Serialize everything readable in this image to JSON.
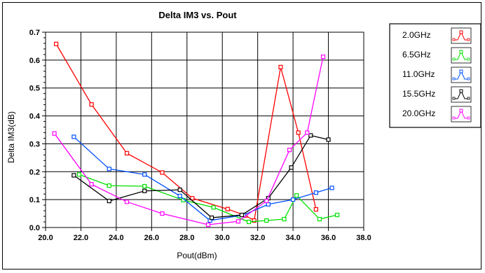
{
  "chart_data": {
    "type": "line",
    "title": "Delta IM3 vs. Pout",
    "xlabel": "Pout(dBm)",
    "ylabel": "Delta IM3(dB)",
    "xlim": [
      20.0,
      38.0
    ],
    "ylim": [
      0.0,
      0.7
    ],
    "x_ticks": [
      "20.0",
      "22.0",
      "24.0",
      "26.0",
      "28.0",
      "30.0",
      "32.0",
      "34.0",
      "36.0",
      "38.0"
    ],
    "y_ticks": [
      "0.0",
      "0.1",
      "0.2",
      "0.3",
      "0.4",
      "0.5",
      "0.6",
      "0.7"
    ],
    "grid": true,
    "legend_position": "right",
    "series": [
      {
        "name": "2.0GHz",
        "color": "#ff0000",
        "points": [
          [
            20.6,
            0.658
          ],
          [
            22.6,
            0.441
          ],
          [
            24.6,
            0.266
          ],
          [
            26.6,
            0.197
          ],
          [
            28.3,
            0.105
          ],
          [
            30.3,
            0.066
          ],
          [
            31.3,
            0.043
          ],
          [
            31.8,
            0.025
          ],
          [
            33.3,
            0.575
          ],
          [
            34.3,
            0.34
          ],
          [
            35.3,
            0.065
          ]
        ]
      },
      {
        "name": "6.5GHz",
        "color": "#00e000",
        "points": [
          [
            21.9,
            0.19
          ],
          [
            23.6,
            0.15
          ],
          [
            25.6,
            0.148
          ],
          [
            27.8,
            0.098
          ],
          [
            29.5,
            0.072
          ],
          [
            31.5,
            0.02
          ],
          [
            32.5,
            0.025
          ],
          [
            33.5,
            0.03
          ],
          [
            34.2,
            0.115
          ],
          [
            35.5,
            0.03
          ],
          [
            36.5,
            0.045
          ]
        ]
      },
      {
        "name": "11.0GHz",
        "color": "#0050ff",
        "points": [
          [
            21.6,
            0.325
          ],
          [
            23.6,
            0.21
          ],
          [
            25.6,
            0.19
          ],
          [
            27.6,
            0.113
          ],
          [
            29.3,
            0.025
          ],
          [
            31.2,
            0.045
          ],
          [
            32.6,
            0.083
          ],
          [
            34.0,
            0.1
          ],
          [
            35.3,
            0.125
          ],
          [
            36.2,
            0.142
          ]
        ]
      },
      {
        "name": "15.5GHz",
        "color": "#000000",
        "points": [
          [
            21.6,
            0.187
          ],
          [
            23.6,
            0.095
          ],
          [
            25.6,
            0.131
          ],
          [
            27.6,
            0.135
          ],
          [
            29.4,
            0.035
          ],
          [
            31.1,
            0.045
          ],
          [
            32.6,
            0.105
          ],
          [
            33.9,
            0.215
          ],
          [
            35.0,
            0.33
          ],
          [
            36.0,
            0.315
          ]
        ]
      },
      {
        "name": "20.0GHz",
        "color": "#ff00ff",
        "points": [
          [
            20.5,
            0.337
          ],
          [
            22.6,
            0.155
          ],
          [
            24.6,
            0.092
          ],
          [
            26.6,
            0.05
          ],
          [
            29.2,
            0.01
          ],
          [
            30.9,
            0.022
          ],
          [
            32.5,
            0.095
          ],
          [
            33.8,
            0.278
          ],
          [
            34.8,
            0.34
          ],
          [
            35.7,
            0.612
          ]
        ]
      }
    ]
  }
}
